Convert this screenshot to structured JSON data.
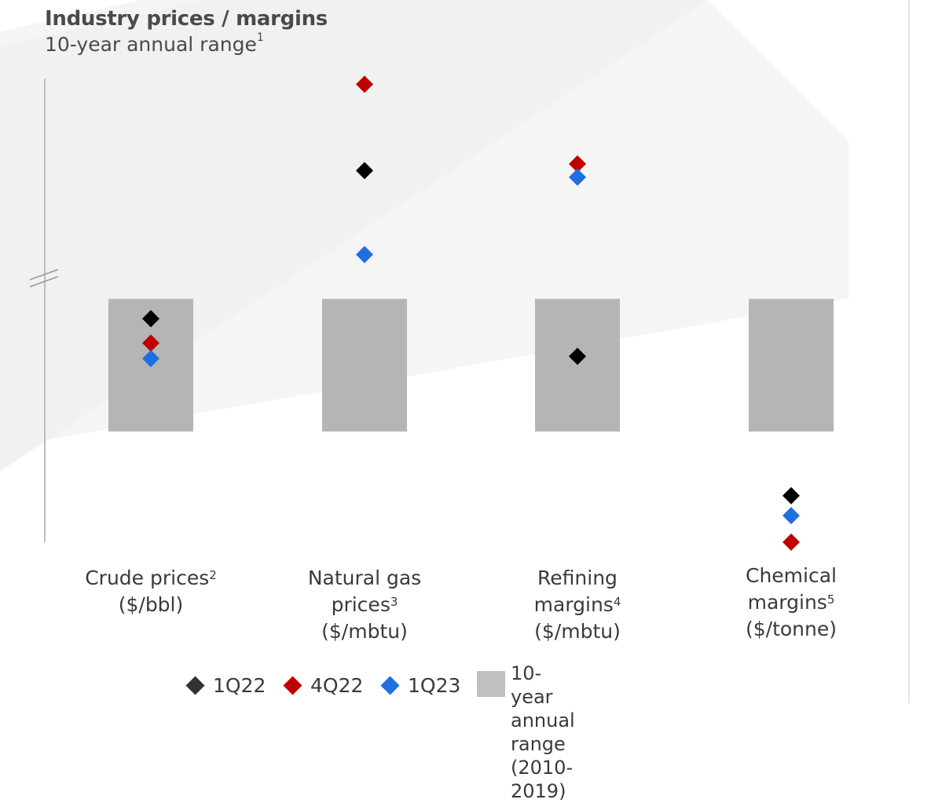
{
  "title": "Industry prices / margins",
  "subtitle": "10-year annual range",
  "subtitle_footnote": "1",
  "colors": {
    "1Q22": "#000000",
    "4Q22": "#c00000",
    "1Q23": "#1f6fe0",
    "range": "#b5b5b5",
    "axis": "#bdbdbd"
  },
  "chart_data": {
    "type": "scatter",
    "note": "",
    "categories": [
      {
        "label": "Crude prices",
        "footnote": "2",
        "unit": "($/bbl)"
      },
      {
        "label": "Natural gas prices",
        "footnote": "3",
        "unit": "($/mbtu)"
      },
      {
        "label": "Refining margins",
        "footnote": "4",
        "unit": "($/mbtu)"
      },
      {
        "label": "Chemical margins",
        "footnote": "5",
        "unit": "($/tonne)"
      }
    ],
    "ylim": [
      0,
      1
    ],
    "range_bars": [
      {
        "category": 0,
        "low": 0.25,
        "high": 0.55
      },
      {
        "category": 1,
        "low": 0.25,
        "high": 0.55
      },
      {
        "category": 2,
        "low": 0.25,
        "high": 0.55
      },
      {
        "category": 3,
        "low": 0.25,
        "high": 0.55
      }
    ],
    "series": [
      {
        "name": "1Q22",
        "values": [
          0.505,
          0.84,
          0.42,
          0.105
        ]
      },
      {
        "name": "4Q22",
        "values": [
          0.45,
          1.035,
          0.855,
          0.0
        ]
      },
      {
        "name": "1Q23",
        "values": [
          0.415,
          0.65,
          0.825,
          0.06
        ]
      }
    ],
    "legend": {
      "position": "bottom",
      "items": [
        "1Q22",
        "4Q22",
        "1Q23"
      ],
      "range_label": "10-year annual range\n(2010-2019)"
    },
    "axis_break": true
  }
}
